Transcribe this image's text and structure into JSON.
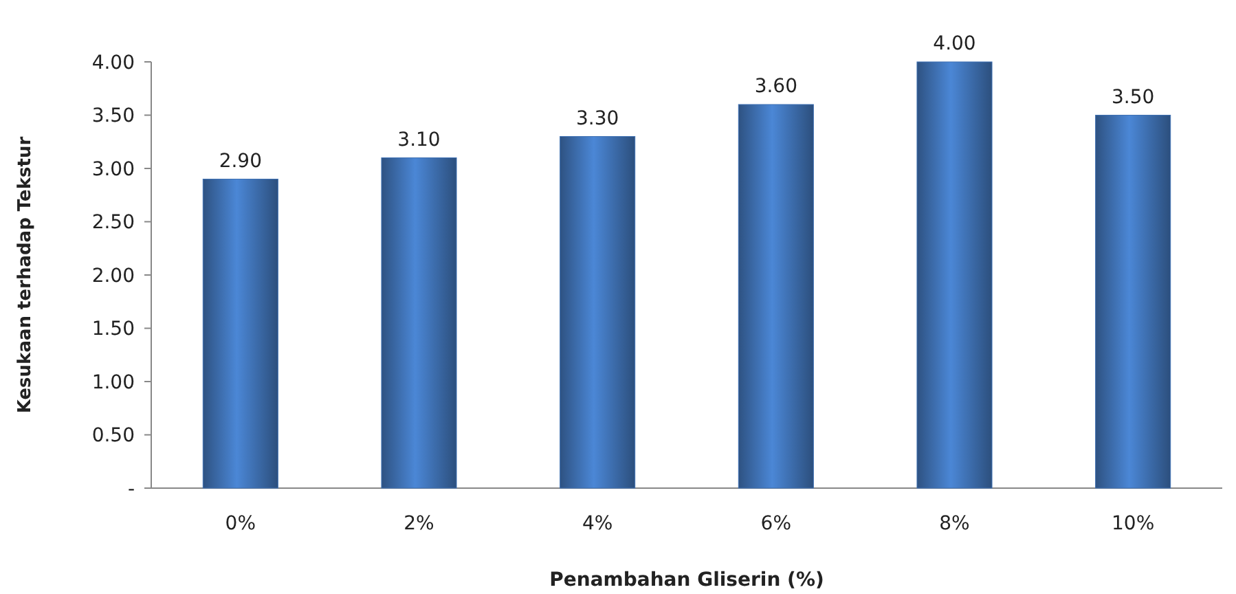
{
  "chart_data": {
    "type": "bar",
    "xlabel": "Penambahan Gliserin (%)",
    "ylabel": "Kesukaan terhadap Tekstur",
    "categories": [
      "0%",
      "2%",
      "4%",
      "6%",
      "8%",
      "10%"
    ],
    "values": [
      2.9,
      3.1,
      3.3,
      3.6,
      4.0,
      3.5
    ],
    "value_labels": [
      "2.90",
      "3.10",
      "3.30",
      "3.60",
      "4.00",
      "3.50"
    ],
    "color": "#3f71b3",
    "ylim": [
      0,
      4
    ],
    "yticks": [
      {
        "value": 0,
        "label": "-"
      },
      {
        "value": 0.5,
        "label": "0.50"
      },
      {
        "value": 1,
        "label": "1.00"
      },
      {
        "value": 1.5,
        "label": "1.50"
      },
      {
        "value": 2,
        "label": "2.00"
      },
      {
        "value": 2.5,
        "label": "2.50"
      },
      {
        "value": 3,
        "label": "3.00"
      },
      {
        "value": 3.5,
        "label": "3.50"
      },
      {
        "value": 4,
        "label": "4.00"
      }
    ],
    "grid": false
  }
}
